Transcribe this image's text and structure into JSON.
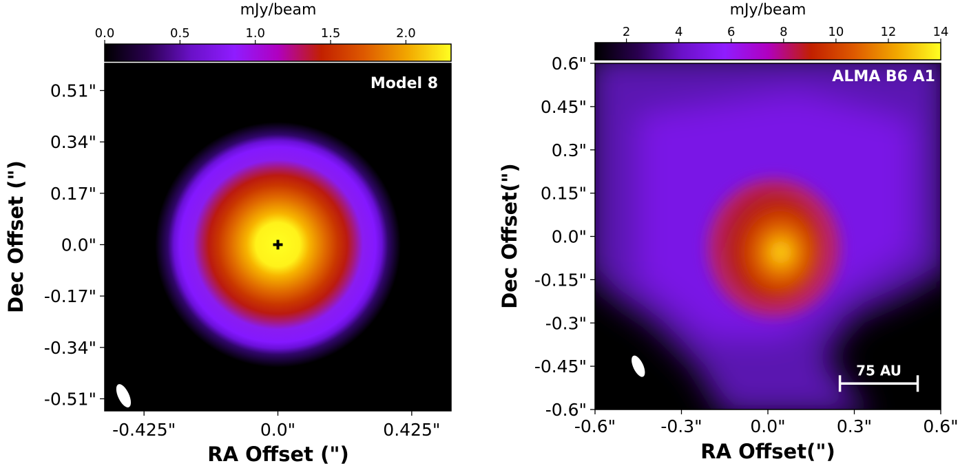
{
  "colors": {
    "cmap": [
      "#000000",
      "#2a0050",
      "#6a11c8",
      "#8f1cff",
      "#b000c0",
      "#c22000",
      "#de5a00",
      "#f2a800",
      "#ffff22"
    ],
    "overlay": "#ffffff",
    "marker": "#000000"
  },
  "chart_data": [
    {
      "type": "heatmap",
      "panel_label": "Model 8",
      "xlabel": "RA Offset (\")",
      "ylabel": "Dec Offset (\")",
      "xlim": [
        -0.55,
        0.55
      ],
      "ylim": [
        -0.55,
        0.6
      ],
      "x_ticks": [
        -0.425,
        0.0,
        0.425
      ],
      "x_tick_labels": [
        "-0.425\"",
        "0.0\"",
        "0.425\""
      ],
      "y_ticks": [
        -0.51,
        -0.34,
        -0.17,
        0.0,
        0.17,
        0.34,
        0.51
      ],
      "y_tick_labels": [
        "-0.51\"",
        "-0.34\"",
        "-0.17\"",
        "0.0\"",
        "0.17\"",
        "0.34\"",
        "0.51\""
      ],
      "colorbar": {
        "label": "mJy/beam",
        "range": [
          0.0,
          2.3
        ],
        "ticks": [
          0.0,
          0.5,
          1.0,
          1.5,
          2.0
        ],
        "tick_labels": [
          "0.0",
          "0.5",
          "1.0",
          "1.5",
          "2.0"
        ],
        "location": "top"
      },
      "emission": {
        "peak_value": 2.3,
        "peak_position": [
          0.0,
          0.0
        ],
        "inner_core_radius": 0.12,
        "ring_radius": 0.31,
        "ring_value": 0.7,
        "outer_edge_radius": 0.36
      },
      "center_marker": [
        0.0,
        0.0
      ],
      "beam": {
        "center": [
          -0.49,
          -0.5
        ],
        "major": 0.08,
        "minor": 0.035,
        "pa_deg": 25
      }
    },
    {
      "type": "heatmap",
      "panel_label": "ALMA B6 A1",
      "xlabel": "RA Offset(\")",
      "ylabel": "Dec Offset(\")",
      "xlim": [
        -0.6,
        0.6
      ],
      "ylim": [
        -0.6,
        0.6
      ],
      "x_ticks": [
        -0.6,
        -0.3,
        0.0,
        0.3,
        0.6
      ],
      "x_tick_labels": [
        "-0.6\"",
        "-0.3\"",
        "0.0\"",
        "0.3\"",
        "0.6\""
      ],
      "y_ticks": [
        -0.6,
        -0.45,
        -0.3,
        -0.15,
        0.0,
        0.15,
        0.3,
        0.45,
        0.6
      ],
      "y_tick_labels": [
        "-0.6\"",
        "-0.45\"",
        "-0.3\"",
        "-0.15\"",
        "0.0\"",
        "0.15\"",
        "0.3\"",
        "0.45\"",
        "0.6\""
      ],
      "colorbar": {
        "label": "mJy/beam",
        "range": [
          0.8,
          14.0
        ],
        "ticks": [
          2,
          4,
          6,
          8,
          10,
          12,
          14
        ],
        "tick_labels": [
          "2",
          "4",
          "6",
          "8",
          "10",
          "12",
          "14"
        ],
        "location": "top"
      },
      "emission": {
        "peak_value": 14.0,
        "peak_position": [
          0.04,
          -0.04
        ],
        "core_radius": 0.18,
        "envelope_radius": 0.55
      },
      "beam": {
        "center": [
          -0.45,
          -0.45
        ],
        "major": 0.08,
        "minor": 0.035,
        "pa_deg": 25
      },
      "scalebar": {
        "label": "75 AU",
        "x_start": 0.25,
        "x_end": 0.52,
        "y": -0.51
      }
    }
  ]
}
